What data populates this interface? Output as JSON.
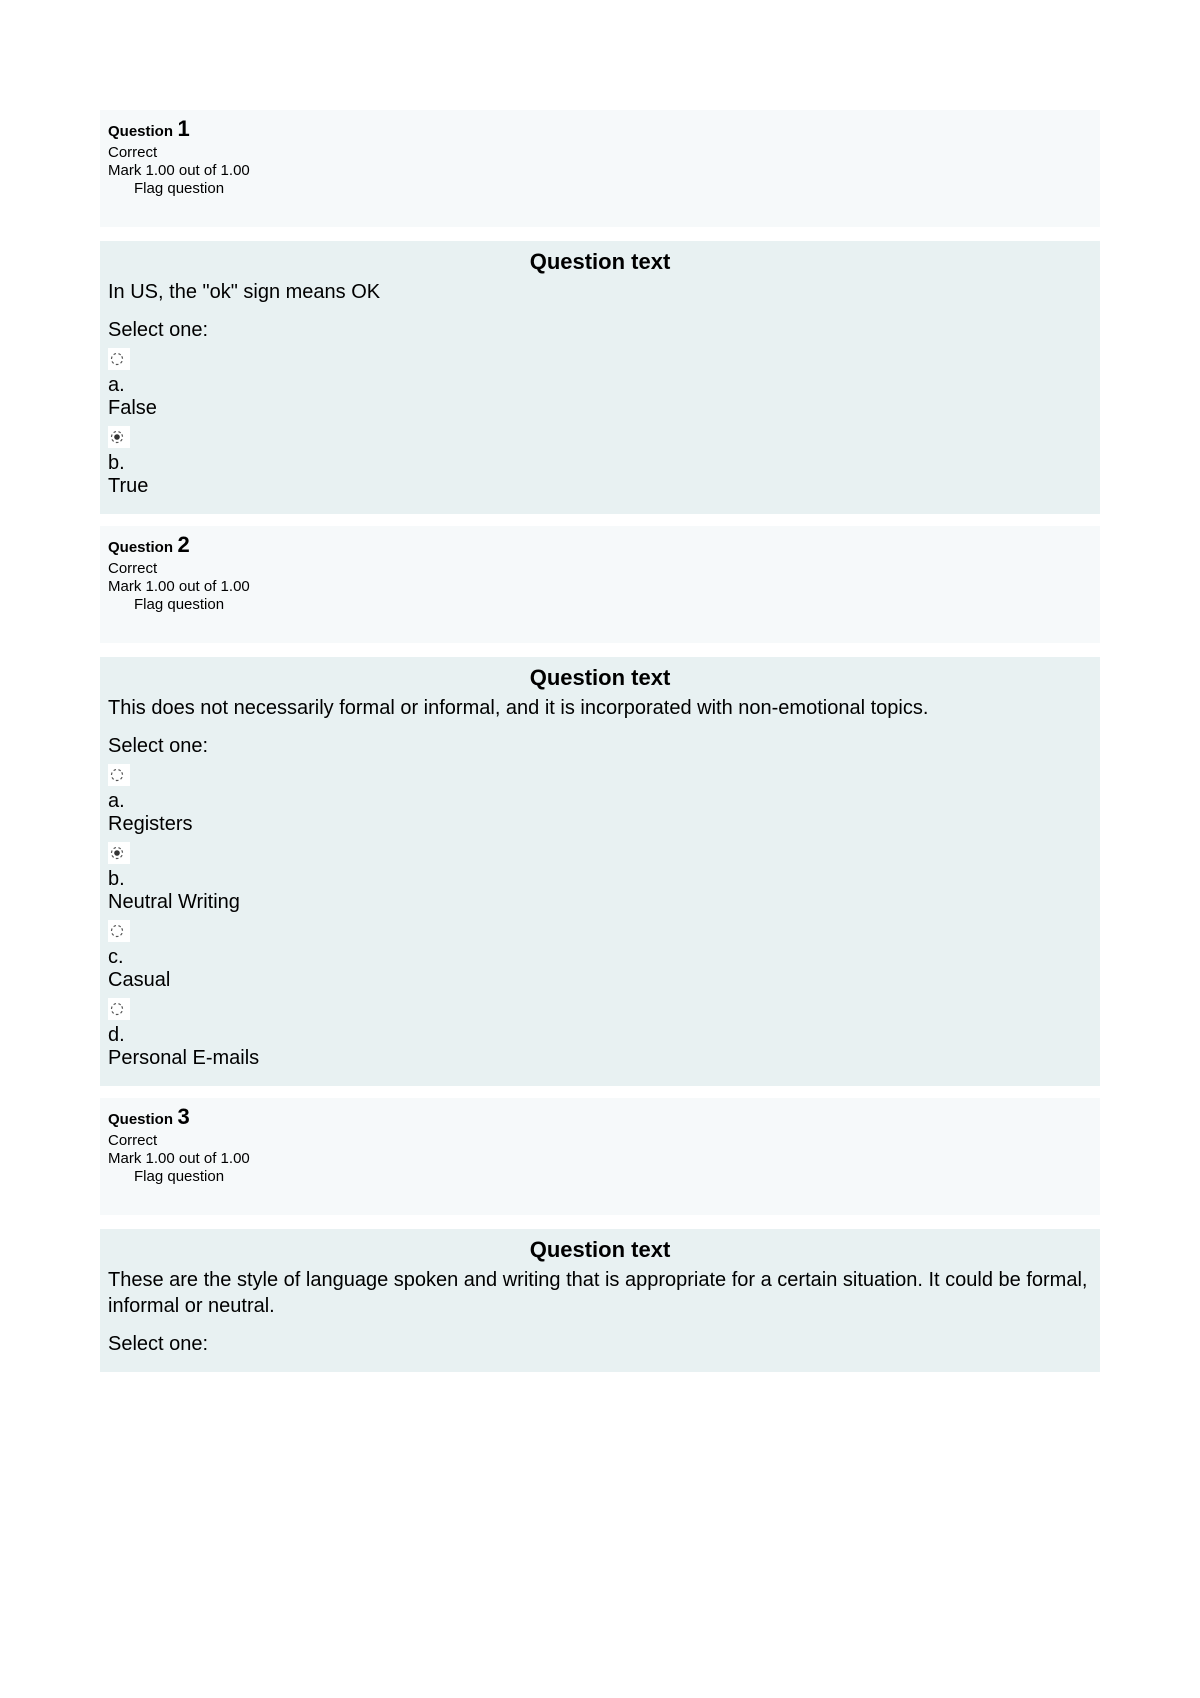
{
  "questions": [
    {
      "label": "Question",
      "number": "1",
      "status": "Correct",
      "mark": "Mark 1.00 out of 1.00",
      "flag": "Flag question",
      "heading": "Question text",
      "prompt": "In US, the \"ok\" sign means OK",
      "select_one": "Select one:",
      "options": [
        {
          "letter": "a.",
          "text": "False",
          "selected": false
        },
        {
          "letter": "b.",
          "text": "True",
          "selected": true
        }
      ]
    },
    {
      "label": "Question",
      "number": "2",
      "status": "Correct",
      "mark": "Mark 1.00 out of 1.00",
      "flag": "Flag question",
      "heading": "Question text",
      "prompt": "This does not necessarily formal or informal, and it is incorporated with non-emotional topics.",
      "select_one": "Select one:",
      "options": [
        {
          "letter": "a.",
          "text": "Registers",
          "selected": false
        },
        {
          "letter": "b.",
          "text": "Neutral Writing",
          "selected": true
        },
        {
          "letter": "c.",
          "text": "Casual",
          "selected": false
        },
        {
          "letter": "d.",
          "text": "Personal E-mails",
          "selected": false
        }
      ]
    },
    {
      "label": "Question",
      "number": "3",
      "status": "Correct",
      "mark": "Mark 1.00 out of 1.00",
      "flag": "Flag question",
      "heading": "Question text",
      "prompt": "These are the style of language spoken and writing that is appropriate for a certain situation. It could be formal, informal or neutral.",
      "select_one": "Select one:",
      "options": []
    }
  ],
  "colors": {
    "header_bg": "#f6f9fa",
    "body_bg": "#e8f1f2",
    "radio_bg": "#ffffff"
  }
}
